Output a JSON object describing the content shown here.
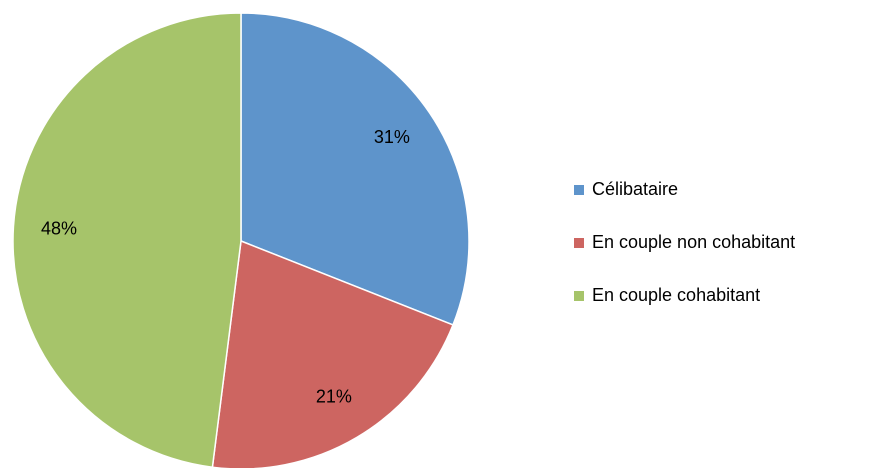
{
  "chart_data": {
    "type": "pie",
    "categories": [
      "Célibataire",
      "En couple non cohabitant",
      "En couple cohabitant"
    ],
    "values": [
      31,
      21,
      48
    ],
    "value_labels": [
      "31%",
      "21%",
      "48%"
    ],
    "colors": [
      "#5e94cb",
      "#cd6561",
      "#a6c46a"
    ],
    "legend": "right"
  }
}
